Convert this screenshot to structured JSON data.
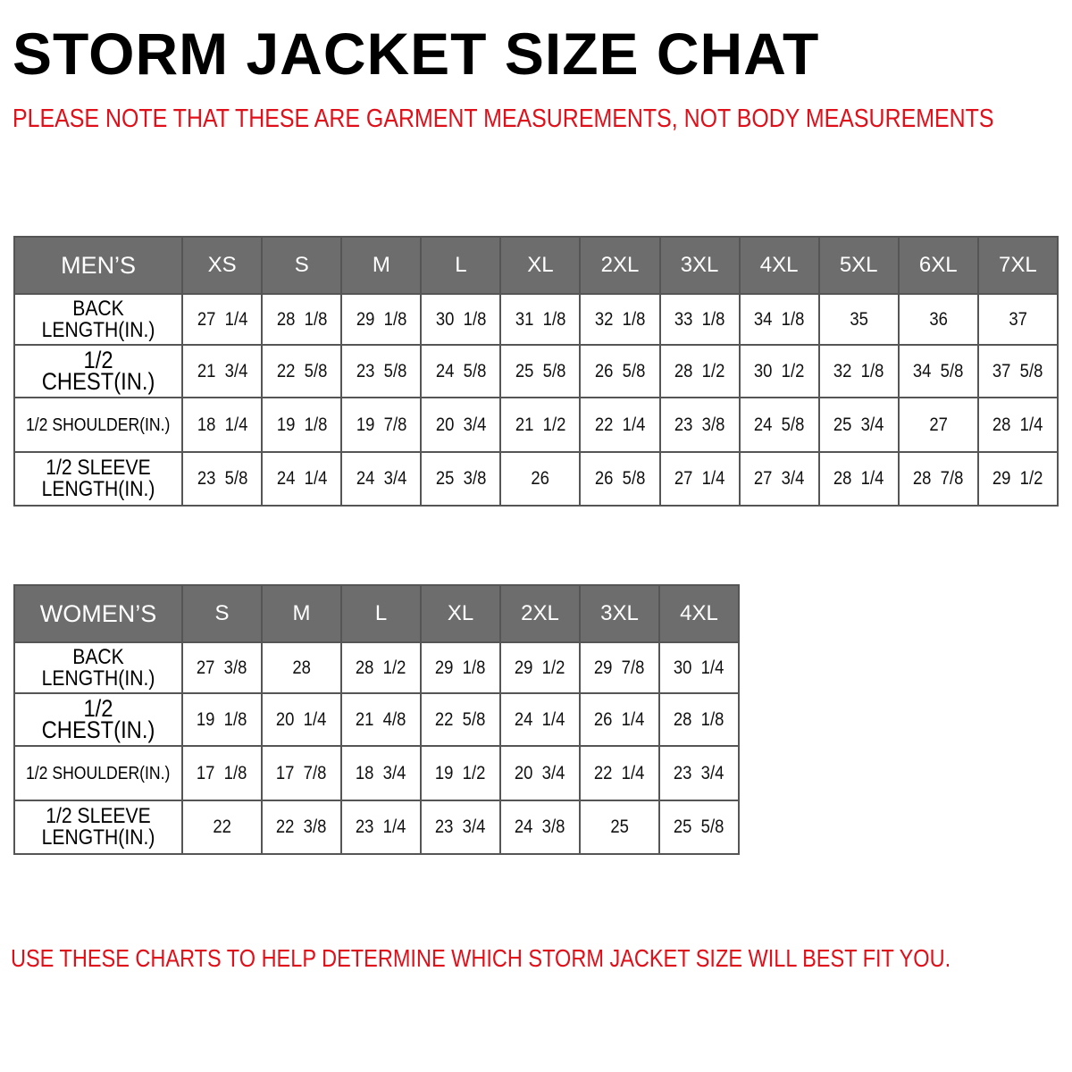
{
  "title": "STORM JACKET SIZE CHAT",
  "note": "PLEASE NOTE THAT THESE ARE GARMENT MEASUREMENTS, NOT BODY MEASUREMENTS",
  "footer": {
    "before": "USE THESE CHARTS TO HELP DETERMINE WHICH ",
    "highlight": "STORM JACKET",
    "after": "  SIZE WILL BEST FIT YOU."
  },
  "colors": {
    "header_bg": "#6d6d6d",
    "accent_red": "#e0101a"
  },
  "men": {
    "header": "MEN’S",
    "sizes": [
      "XS",
      "S",
      "M",
      "L",
      "XL",
      "2XL",
      "3XL",
      "4XL",
      "5XL",
      "6XL",
      "7XL"
    ],
    "rows": [
      {
        "label": "BACK\nLENGTH(IN.)",
        "values": [
          "27  1/4",
          "28  1/8",
          "29  1/8",
          "30  1/8",
          "31  1/8",
          "32  1/8",
          "33  1/8",
          "34  1/8",
          "35",
          "36",
          "37"
        ]
      },
      {
        "label": "1/2  CHEST(IN.)",
        "values": [
          "21  3/4",
          "22  5/8",
          "23  5/8",
          "24  5/8",
          "25  5/8",
          "26  5/8",
          "28  1/2",
          "30  1/2",
          "32  1/8",
          "34  5/8",
          "37  5/8"
        ]
      },
      {
        "label": "1/2  SHOULDER(IN.)",
        "values": [
          "18  1/4",
          "19  1/8",
          "19  7/8",
          "20  3/4",
          "21  1/2",
          "22  1/4",
          "23  3/8",
          "24  5/8",
          "25  3/4",
          "27",
          "28  1/4"
        ]
      },
      {
        "label": "1/2  SLEEVE\nLENGTH(IN.)",
        "values": [
          "23  5/8",
          "24  1/4",
          "24  3/4",
          "25  3/8",
          "26",
          "26  5/8",
          "27  1/4",
          "27  3/4",
          "28  1/4",
          "28  7/8",
          "29  1/2"
        ]
      }
    ]
  },
  "women": {
    "header": "WOMEN’S",
    "sizes": [
      "S",
      "M",
      "L",
      "XL",
      "2XL",
      "3XL",
      "4XL"
    ],
    "rows": [
      {
        "label": "BACK\nLENGTH(IN.)",
        "values": [
          "27  3/8",
          "28",
          "28  1/2",
          "29  1/8",
          "29  1/2",
          "29  7/8",
          "30  1/4"
        ]
      },
      {
        "label": "1/2  CHEST(IN.)",
        "values": [
          "19  1/8",
          "20  1/4",
          "21  4/8",
          "22  5/8",
          "24  1/4",
          "26  1/4",
          "28  1/8"
        ]
      },
      {
        "label": "1/2  SHOULDER(IN.)",
        "values": [
          "17  1/8",
          "17  7/8",
          "18  3/4",
          "19  1/2",
          "20  3/4",
          "22  1/4",
          "23  3/4"
        ]
      },
      {
        "label": "1/2  SLEEVE\nLENGTH(IN.)",
        "values": [
          "22",
          "22  3/8",
          "23  1/4",
          "23  3/4",
          "24  3/8",
          "25",
          "25  5/8"
        ]
      }
    ]
  }
}
